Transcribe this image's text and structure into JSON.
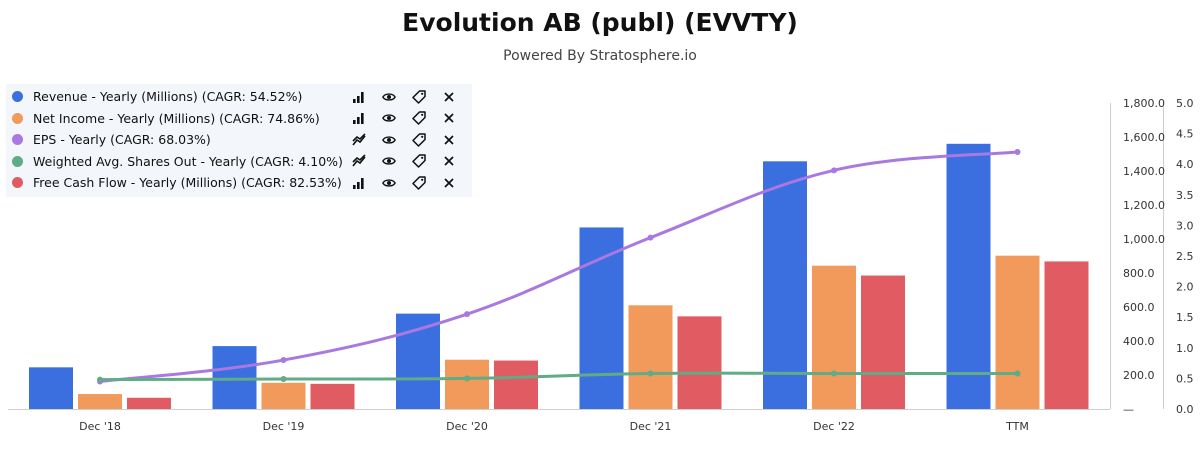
{
  "header": {
    "title": "Evolution AB (publ) (EVVTY)",
    "subtitle": "Powered By Stratosphere.io"
  },
  "legend": {
    "items": [
      {
        "label": "Revenue - Yearly (Millions) (CAGR: 54.52%)",
        "color": "#3b6fdf",
        "type_icon": "bar-chart-icon"
      },
      {
        "label": "Net Income - Yearly (Millions) (CAGR: 74.86%)",
        "color": "#f19a5b",
        "type_icon": "bar-chart-icon"
      },
      {
        "label": "EPS - Yearly (CAGR: 68.03%)",
        "color": "#a978e0",
        "type_icon": "line-chart-icon"
      },
      {
        "label": "Weighted Avg. Shares Out - Yearly (CAGR: 4.10%)",
        "color": "#5fac86",
        "type_icon": "line-chart-icon"
      },
      {
        "label": "Free Cash Flow - Yearly (Millions) (CAGR: 82.53%)",
        "color": "#e05c62",
        "type_icon": "bar-chart-icon"
      }
    ],
    "action_icons": [
      "eye-icon",
      "tag-icon",
      "close-icon"
    ]
  },
  "chart_data": {
    "type": "bar",
    "categories": [
      "Dec '18",
      "Dec '19",
      "Dec '20",
      "Dec '21",
      "Dec '22",
      "TTM"
    ],
    "series": [
      {
        "name": "Revenue - Yearly (Millions) (CAGR: 54.52%)",
        "kind": "bar",
        "axis": "left",
        "color": "#3b6fdf",
        "values": [
          245,
          370,
          561,
          1068,
          1457,
          1560
        ]
      },
      {
        "name": "Net Income - Yearly (Millions) (CAGR: 74.86%)",
        "kind": "bar",
        "axis": "left",
        "color": "#f19a5b",
        "values": [
          88,
          154,
          290,
          610,
          843,
          902
        ]
      },
      {
        "name": "Free Cash Flow - Yearly (Millions) (CAGR: 82.53%)",
        "kind": "bar",
        "axis": "left",
        "color": "#e05c62",
        "values": [
          66,
          148,
          285,
          545,
          785,
          868
        ]
      },
      {
        "name": "EPS - Yearly (CAGR: 68.03%)",
        "kind": "line",
        "axis": "right",
        "color": "#a978e0",
        "values": [
          0.45,
          0.8,
          1.55,
          2.8,
          3.9,
          4.2
        ]
      },
      {
        "name": "Weighted Avg. Shares Out - Yearly (CAGR: 4.10%)",
        "kind": "line",
        "axis": "right",
        "color": "#5fac86",
        "values": [
          0.48,
          0.49,
          0.5,
          0.58,
          0.58,
          0.58
        ]
      }
    ],
    "y_left": {
      "ylim": [
        0,
        1800
      ],
      "ticks": [
        "—",
        "200.0",
        "400.0",
        "600.0",
        "800.0",
        "1,000.0",
        "1,200.0",
        "1,400.0",
        "1,600.0",
        "1,800.0"
      ]
    },
    "y_right": {
      "ylim": [
        0,
        5
      ],
      "ticks": [
        "0.0",
        "0.5",
        "1.0",
        "1.5",
        "2.0",
        "2.5",
        "3.0",
        "3.5",
        "4.0",
        "4.5",
        "5.0"
      ]
    },
    "grid": false,
    "legend_position": "top-left"
  }
}
